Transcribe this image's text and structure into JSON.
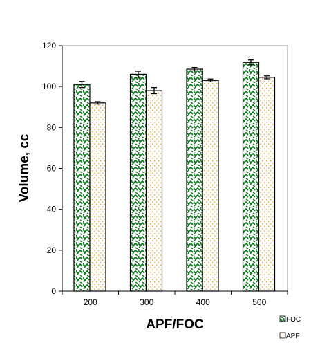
{
  "chart_data": {
    "type": "bar",
    "xlabel": "APF/FOC",
    "ylabel": "Volume, cc",
    "categories": [
      "200",
      "300",
      "400",
      "500"
    ],
    "ylim": [
      0,
      120
    ],
    "yticks": [
      0,
      20,
      40,
      60,
      80,
      100,
      120
    ],
    "grid": false,
    "legend_position": "bottom-right",
    "series": [
      {
        "name": "FOC",
        "values": [
          101,
          106,
          108.5,
          111.8
        ],
        "errors": [
          1.5,
          1.5,
          0.8,
          1.2
        ],
        "color": "#0a7a1a",
        "fill": "checkered-pattern"
      },
      {
        "name": "APF",
        "values": [
          92,
          98,
          103,
          104.5
        ],
        "errors": [
          0.6,
          1.5,
          0.7,
          0.7
        ],
        "color": "#f5a623",
        "fill": "dotted-pattern"
      }
    ]
  }
}
